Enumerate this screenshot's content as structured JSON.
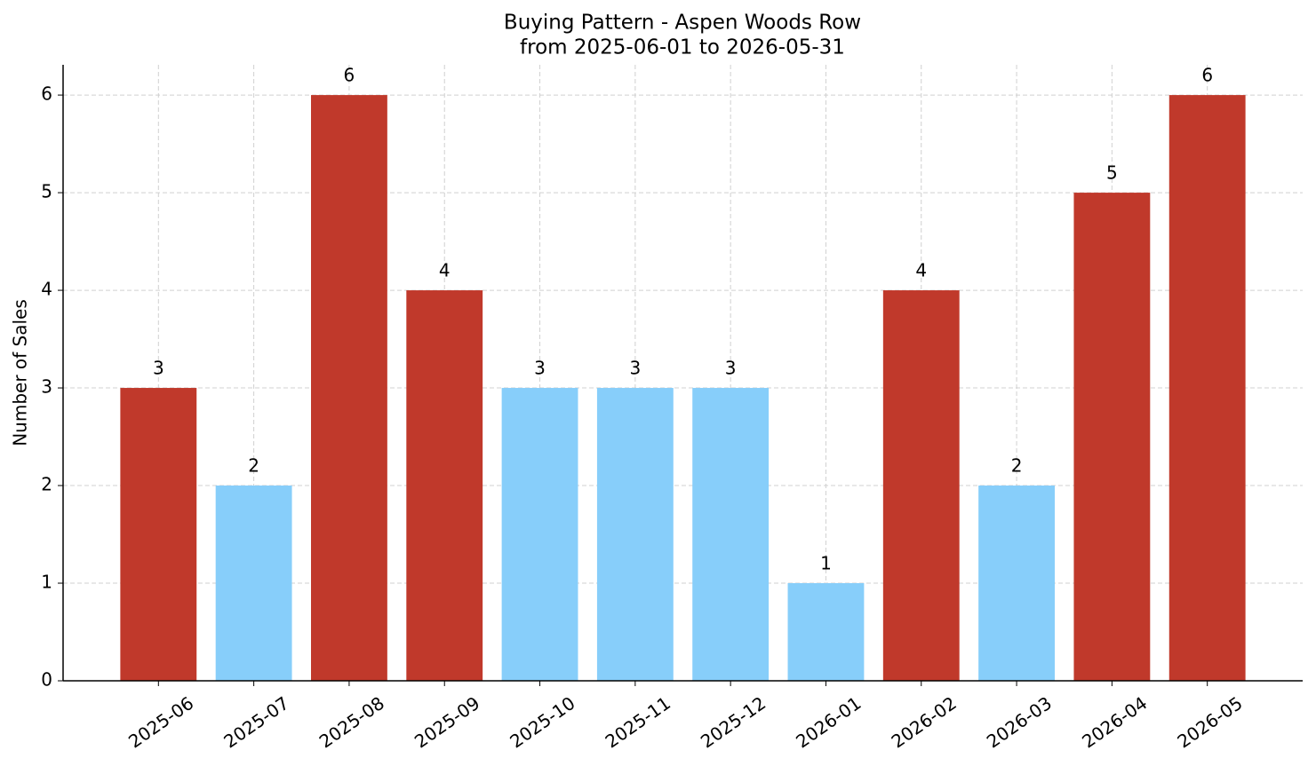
{
  "chart_data": {
    "type": "bar",
    "title": "Buying Pattern - Aspen Woods Row",
    "subtitle": "from 2025-06-01 to 2026-05-31",
    "y_label": "Number of Sales",
    "categories": [
      "2025-06",
      "2025-07",
      "2025-08",
      "2025-09",
      "2025-10",
      "2025-11",
      "2025-12",
      "2026-01",
      "2026-02",
      "2026-03",
      "2026-04",
      "2026-05"
    ],
    "values": [
      3,
      2,
      6,
      4,
      3,
      3,
      3,
      1,
      4,
      2,
      5,
      6
    ],
    "colors": [
      "#c0392b",
      "#87cefa",
      "#c0392b",
      "#c0392b",
      "#87cefa",
      "#87cefa",
      "#87cefa",
      "#87cefa",
      "#c0392b",
      "#87cefa",
      "#c0392b",
      "#c0392b"
    ],
    "ylim": [
      0,
      6.31
    ],
    "yticks": [
      0,
      1,
      2,
      3,
      4,
      5,
      6
    ],
    "grid": true
  }
}
